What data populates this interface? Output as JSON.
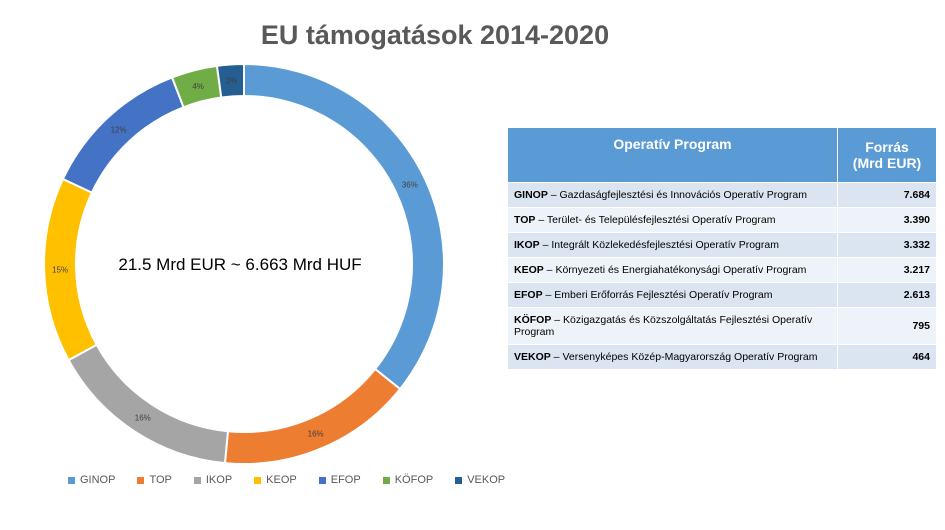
{
  "title": "EU támogatások 2014-2020",
  "center_label": "21.5 Mrd EUR ~ 6.663 Mrd HUF",
  "table": {
    "header_program": "Operatív Program",
    "header_source_line1": "Forrás",
    "header_source_line2": "(Mrd EUR)",
    "rows": [
      {
        "code": "GINOP",
        "desc": " – Gazdaságfejlesztési és Innovációs Operatív Program",
        "value": "7.684"
      },
      {
        "code": "TOP",
        "desc": " – Terület- és Településfejlesztési Operatív Program",
        "value": "3.390"
      },
      {
        "code": "IKOP",
        "desc": " – Integrált Közlekedésfejlesztési Operatív Program",
        "value": "3.332"
      },
      {
        "code": "KEOP",
        "desc": " – Környezeti és Energiahatékonysági Operatív Program",
        "value": "3.217"
      },
      {
        "code": "EFOP",
        "desc": " – Emberi Erőforrás Fejlesztési Operatív Program",
        "value": "2.613"
      },
      {
        "code": "KÖFOP",
        "desc": " – Közigazgatás és Közszolgáltatás Fejlesztési Operatív Program",
        "value": "795"
      },
      {
        "code": "VEKOP",
        "desc": " – Versenyképes Közép-Magyarország Operatív Program",
        "value": "464"
      }
    ]
  },
  "chart_data": {
    "type": "pie",
    "variant": "donut",
    "title": "EU támogatások 2014-2020",
    "legend_position": "bottom",
    "categories": [
      "GINOP",
      "TOP",
      "IKOP",
      "KEOP",
      "EFOP",
      "KÖFOP",
      "VEKOP"
    ],
    "values": [
      7.684,
      3.39,
      3.332,
      3.217,
      2.613,
      0.795,
      0.464
    ],
    "labels": [
      "36%",
      "16%",
      "16%",
      "15%",
      "12%",
      "4%",
      "2%"
    ],
    "colors": [
      "#5b9bd5",
      "#ed7d31",
      "#a5a5a5",
      "#ffc000",
      "#4472c4",
      "#70ad47",
      "#255e91"
    ]
  }
}
